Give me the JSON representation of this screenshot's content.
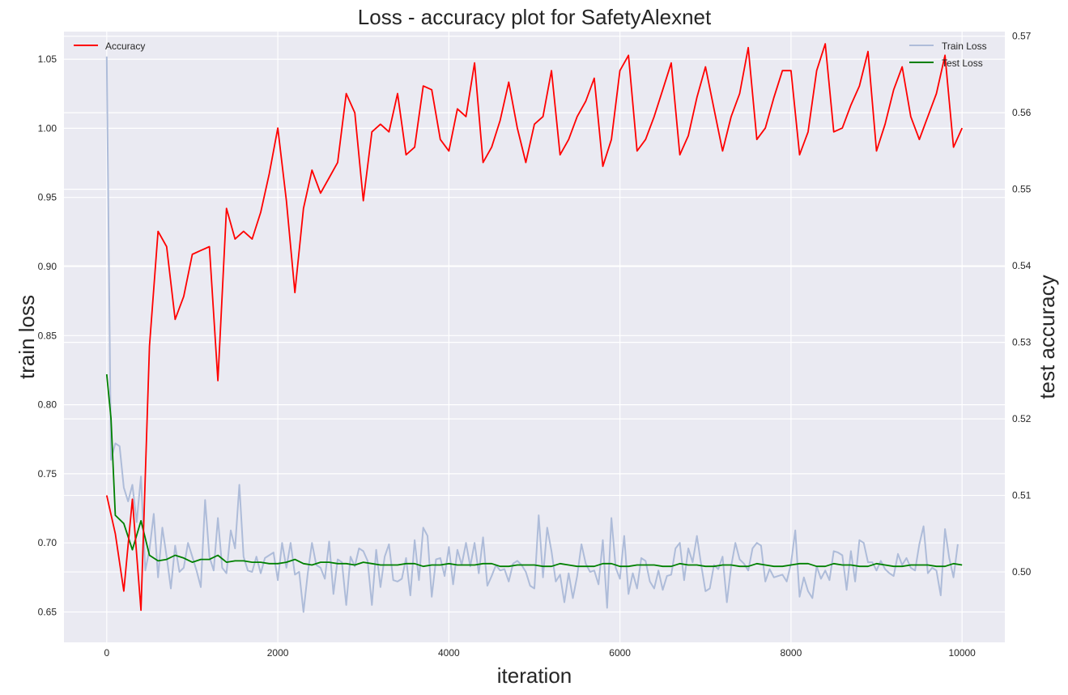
{
  "chart_data": {
    "type": "line",
    "title": "Loss - accuracy plot for SafetyAlexnet",
    "xlabel": "iteration",
    "ylabel": "train loss",
    "ylabel_right": "test accuracy",
    "xlim": [
      -500,
      10500
    ],
    "ylim": [
      0.628,
      1.07
    ],
    "ylim_right": [
      0.4908,
      0.5706
    ],
    "xticks": [
      0,
      2000,
      4000,
      6000,
      8000,
      10000
    ],
    "yticks": [
      0.65,
      0.7,
      0.75,
      0.8,
      0.85,
      0.9,
      0.95,
      1.0,
      1.05
    ],
    "yticks_right": [
      0.5,
      0.51,
      0.52,
      0.53,
      0.54,
      0.55,
      0.56,
      0.57
    ],
    "grid": true,
    "legend_left": {
      "placement": "upper-left",
      "entries": [
        "Accuracy"
      ]
    },
    "legend_right": {
      "placement": "upper-right",
      "entries": [
        "Train Loss",
        "Test Loss"
      ]
    },
    "colors": {
      "background": "#eaeaf2",
      "grid": "#ffffff",
      "accuracy": "#ff0000",
      "train_loss": "#aebcd9",
      "test_loss": "#008000"
    },
    "series": [
      {
        "name": "Train Loss",
        "axis": "left",
        "x": [
          0,
          50,
          100,
          150,
          200,
          250,
          300,
          350,
          400,
          450,
          500,
          550,
          600,
          650,
          700,
          750,
          800,
          850,
          900,
          950,
          1000,
          1050,
          1100,
          1150,
          1200,
          1250,
          1300,
          1350,
          1400,
          1450,
          1500,
          1550,
          1600,
          1650,
          1700,
          1750,
          1800,
          1850,
          1900,
          1950,
          2000,
          2050,
          2100,
          2150,
          2200,
          2250,
          2300,
          2350,
          2400,
          2450,
          2500,
          2550,
          2600,
          2650,
          2700,
          2750,
          2800,
          2850,
          2900,
          2950,
          3000,
          3050,
          3100,
          3150,
          3200,
          3250,
          3300,
          3350,
          3400,
          3450,
          3500,
          3550,
          3600,
          3650,
          3700,
          3750,
          3800,
          3850,
          3900,
          3950,
          4000,
          4050,
          4100,
          4150,
          4200,
          4250,
          4300,
          4350,
          4400,
          4450,
          4500,
          4550,
          4600,
          4650,
          4700,
          4750,
          4800,
          4850,
          4900,
          4950,
          5000,
          5050,
          5100,
          5150,
          5200,
          5250,
          5300,
          5350,
          5400,
          5450,
          5500,
          5550,
          5600,
          5650,
          5700,
          5750,
          5800,
          5850,
          5900,
          5950,
          6000,
          6050,
          6100,
          6150,
          6200,
          6250,
          6300,
          6350,
          6400,
          6450,
          6500,
          6550,
          6600,
          6650,
          6700,
          6750,
          6800,
          6850,
          6900,
          6950,
          7000,
          7050,
          7100,
          7150,
          7200,
          7250,
          7300,
          7350,
          7400,
          7450,
          7500,
          7550,
          7600,
          7650,
          7700,
          7750,
          7800,
          7850,
          7900,
          7950,
          8000,
          8050,
          8100,
          8150,
          8200,
          8250,
          8300,
          8350,
          8400,
          8450,
          8500,
          8550,
          8600,
          8650,
          8700,
          8750,
          8800,
          8850,
          8900,
          8950,
          9000,
          9050,
          9100,
          9150,
          9200,
          9250,
          9300,
          9350,
          9400,
          9450,
          9500,
          9550,
          9600,
          9650,
          9700,
          9750,
          9800,
          9850,
          9900,
          9950
        ],
        "values": [
          1.052,
          0.76,
          0.772,
          0.77,
          0.74,
          0.73,
          0.742,
          0.715,
          0.748,
          0.68,
          0.695,
          0.721,
          0.675,
          0.711,
          0.69,
          0.667,
          0.698,
          0.679,
          0.682,
          0.7,
          0.69,
          0.68,
          0.668,
          0.731,
          0.69,
          0.68,
          0.718,
          0.682,
          0.678,
          0.709,
          0.696,
          0.742,
          0.69,
          0.68,
          0.679,
          0.69,
          0.678,
          0.689,
          0.691,
          0.693,
          0.673,
          0.7,
          0.682,
          0.7,
          0.677,
          0.679,
          0.65,
          0.678,
          0.7,
          0.684,
          0.682,
          0.674,
          0.701,
          0.663,
          0.688,
          0.686,
          0.655,
          0.69,
          0.683,
          0.696,
          0.694,
          0.687,
          0.655,
          0.695,
          0.668,
          0.69,
          0.699,
          0.673,
          0.672,
          0.674,
          0.689,
          0.662,
          0.702,
          0.673,
          0.711,
          0.705,
          0.661,
          0.688,
          0.689,
          0.676,
          0.697,
          0.67,
          0.695,
          0.684,
          0.7,
          0.683,
          0.7,
          0.678,
          0.704,
          0.669,
          0.676,
          0.684,
          0.68,
          0.681,
          0.672,
          0.685,
          0.687,
          0.684,
          0.679,
          0.669,
          0.667,
          0.72,
          0.675,
          0.711,
          0.694,
          0.672,
          0.677,
          0.657,
          0.678,
          0.66,
          0.676,
          0.699,
          0.685,
          0.679,
          0.68,
          0.67,
          0.702,
          0.653,
          0.718,
          0.682,
          0.674,
          0.705,
          0.663,
          0.678,
          0.667,
          0.689,
          0.687,
          0.672,
          0.667,
          0.68,
          0.666,
          0.676,
          0.677,
          0.696,
          0.7,
          0.673,
          0.696,
          0.686,
          0.705,
          0.684,
          0.665,
          0.667,
          0.684,
          0.681,
          0.69,
          0.657,
          0.683,
          0.7,
          0.688,
          0.685,
          0.68,
          0.696,
          0.7,
          0.698,
          0.672,
          0.681,
          0.675,
          0.676,
          0.677,
          0.672,
          0.685,
          0.709,
          0.661,
          0.675,
          0.665,
          0.66,
          0.683,
          0.674,
          0.68,
          0.673,
          0.694,
          0.693,
          0.691,
          0.666,
          0.694,
          0.672,
          0.702,
          0.7,
          0.686,
          0.686,
          0.68,
          0.687,
          0.681,
          0.678,
          0.676,
          0.692,
          0.684,
          0.689,
          0.682,
          0.68,
          0.699,
          0.712,
          0.678,
          0.682,
          0.68,
          0.662,
          0.71,
          0.689,
          0.675,
          0.699
        ]
      },
      {
        "name": "Test Loss",
        "axis": "left",
        "x": [
          0,
          50,
          100,
          200,
          300,
          400,
          500,
          600,
          700,
          800,
          900,
          1000,
          1100,
          1200,
          1300,
          1400,
          1500,
          1600,
          1700,
          1800,
          1900,
          2000,
          2100,
          2200,
          2300,
          2400,
          2500,
          2600,
          2700,
          2800,
          2900,
          3000,
          3100,
          3200,
          3300,
          3400,
          3500,
          3600,
          3700,
          3800,
          3900,
          4000,
          4100,
          4200,
          4300,
          4400,
          4500,
          4600,
          4700,
          4800,
          4900,
          5000,
          5100,
          5200,
          5300,
          5400,
          5500,
          5600,
          5700,
          5800,
          5900,
          6000,
          6100,
          6200,
          6300,
          6400,
          6500,
          6600,
          6700,
          6800,
          6900,
          7000,
          7100,
          7200,
          7300,
          7400,
          7500,
          7600,
          7700,
          7800,
          7900,
          8000,
          8100,
          8200,
          8300,
          8400,
          8500,
          8600,
          8700,
          8800,
          8900,
          9000,
          9100,
          9200,
          9300,
          9400,
          9500,
          9600,
          9700,
          9800,
          9900,
          10000
        ],
        "values": [
          0.822,
          0.79,
          0.72,
          0.714,
          0.695,
          0.716,
          0.691,
          0.687,
          0.688,
          0.691,
          0.689,
          0.686,
          0.688,
          0.688,
          0.691,
          0.686,
          0.687,
          0.687,
          0.686,
          0.686,
          0.685,
          0.685,
          0.686,
          0.688,
          0.685,
          0.684,
          0.686,
          0.686,
          0.685,
          0.685,
          0.684,
          0.686,
          0.685,
          0.684,
          0.684,
          0.684,
          0.685,
          0.685,
          0.683,
          0.684,
          0.684,
          0.685,
          0.684,
          0.684,
          0.684,
          0.685,
          0.685,
          0.683,
          0.683,
          0.684,
          0.684,
          0.684,
          0.683,
          0.683,
          0.685,
          0.684,
          0.683,
          0.683,
          0.683,
          0.685,
          0.685,
          0.683,
          0.683,
          0.684,
          0.684,
          0.684,
          0.683,
          0.683,
          0.685,
          0.684,
          0.684,
          0.683,
          0.683,
          0.684,
          0.684,
          0.683,
          0.683,
          0.685,
          0.684,
          0.683,
          0.683,
          0.684,
          0.685,
          0.685,
          0.683,
          0.683,
          0.685,
          0.684,
          0.684,
          0.683,
          0.683,
          0.685,
          0.684,
          0.683,
          0.683,
          0.684,
          0.684,
          0.684,
          0.683,
          0.683,
          0.685,
          0.684
        ]
      },
      {
        "name": "Accuracy",
        "axis": "right",
        "x": [
          0,
          100,
          200,
          300,
          400,
          500,
          600,
          700,
          800,
          900,
          1000,
          1100,
          1200,
          1300,
          1400,
          1500,
          1600,
          1700,
          1800,
          1900,
          2000,
          2100,
          2200,
          2300,
          2400,
          2500,
          2600,
          2700,
          2800,
          2900,
          3000,
          3100,
          3200,
          3300,
          3400,
          3500,
          3600,
          3700,
          3800,
          3900,
          4000,
          4100,
          4200,
          4300,
          4400,
          4500,
          4600,
          4700,
          4800,
          4900,
          5000,
          5100,
          5200,
          5300,
          5400,
          5500,
          5600,
          5700,
          5800,
          5900,
          6000,
          6100,
          6200,
          6300,
          6400,
          6500,
          6600,
          6700,
          6800,
          6900,
          7000,
          7100,
          7200,
          7300,
          7400,
          7500,
          7600,
          7700,
          7800,
          7900,
          8000,
          8100,
          8200,
          8300,
          8400,
          8500,
          8600,
          8700,
          8800,
          8900,
          9000,
          9100,
          9200,
          9300,
          9400,
          9500,
          9600,
          9700,
          9800,
          9900,
          10000
        ],
        "values": [
          0.51,
          0.505,
          0.4975,
          0.5095,
          0.495,
          0.5295,
          0.5445,
          0.5425,
          0.533,
          0.536,
          0.5415,
          0.542,
          0.5425,
          0.525,
          0.5475,
          0.5435,
          0.5445,
          0.5435,
          0.547,
          0.552,
          0.558,
          0.5485,
          0.5365,
          0.5475,
          0.5525,
          0.5495,
          0.5515,
          0.5535,
          0.5625,
          0.56,
          0.5485,
          0.5575,
          0.5585,
          0.5575,
          0.5625,
          0.5545,
          0.5555,
          0.5635,
          0.563,
          0.5565,
          0.555,
          0.5605,
          0.5595,
          0.5665,
          0.5535,
          0.5555,
          0.559,
          0.564,
          0.558,
          0.5535,
          0.5585,
          0.5595,
          0.5655,
          0.5545,
          0.5565,
          0.5595,
          0.5615,
          0.5645,
          0.553,
          0.5565,
          0.5655,
          0.5675,
          0.555,
          0.5565,
          0.5595,
          0.563,
          0.5665,
          0.5545,
          0.557,
          0.562,
          0.566,
          0.5605,
          0.555,
          0.5595,
          0.5625,
          0.5685,
          0.5565,
          0.558,
          0.562,
          0.5655,
          0.5655,
          0.5545,
          0.5575,
          0.5655,
          0.569,
          0.5575,
          0.558,
          0.561,
          0.5635,
          0.568,
          0.555,
          0.5585,
          0.563,
          0.566,
          0.5595,
          0.5565,
          0.5595,
          0.5625,
          0.5675,
          0.5555,
          0.558
        ]
      }
    ]
  }
}
